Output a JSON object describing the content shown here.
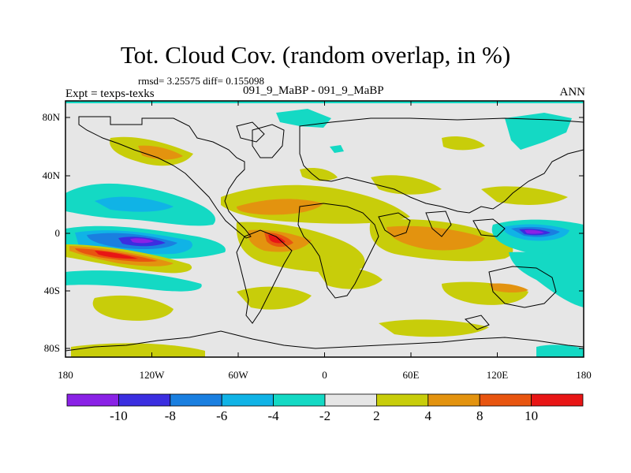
{
  "header": {
    "title": "Tot. Cloud Cov. (random overlap, in %)",
    "stats": "rmsd= 3.25575 diff= 0.155098",
    "experiment": "Expt = texps-texks",
    "cases": "091_9_MaBP - 091_9_MaBP",
    "season": "ANN"
  },
  "map": {
    "lat_ticks": [
      "80N",
      "40N",
      "0",
      "40S",
      "80S"
    ],
    "lon_ticks": [
      "180",
      "120W",
      "60W",
      "0",
      "60E",
      "120E",
      "180"
    ],
    "background_color": "#e6e6e6"
  },
  "colorbar": {
    "labels": [
      "-10",
      "-8",
      "-6",
      "-4",
      "-2",
      "2",
      "4",
      "8",
      "10"
    ],
    "colors": [
      "#8a22e6",
      "#3b2ee0",
      "#1a7fe0",
      "#10b3e6",
      "#14d9c4",
      "#e6e6e6",
      "#c8cd0a",
      "#e3930f",
      "#e85510",
      "#e81515"
    ]
  }
}
